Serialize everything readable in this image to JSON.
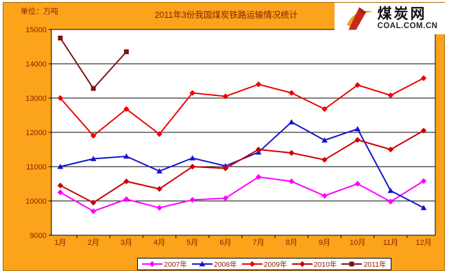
{
  "page": {
    "unit_label": "单位：万吨"
  },
  "logo": {
    "brand": "煤炭网",
    "domain": "COAL.COM.CN"
  },
  "colors": {
    "panel_bg": "#FBA31B",
    "panel_border": "#B06400",
    "label_text": "#8A1F00",
    "plot_bg": "#FFFFFF",
    "plot_border": "#000000",
    "gridline": "#000000",
    "logo_red": "#C42B1C",
    "logo_gold": "#F0A020"
  },
  "chart_data": {
    "type": "line",
    "title": "2011年3份我国煤炭铁路运输情况统计",
    "unit_label": "单位：万吨",
    "categories": [
      "1月",
      "2月",
      "3月",
      "4月",
      "5月",
      "6月",
      "7月",
      "8月",
      "9月",
      "10月",
      "11月",
      "12月"
    ],
    "series": [
      {
        "name": "2007年",
        "color": "#FF00FF",
        "marker": "diamond",
        "values": [
          10250,
          9700,
          10050,
          9800,
          10030,
          10080,
          10700,
          10570,
          10150,
          10500,
          9980,
          10580
        ]
      },
      {
        "name": "2008年",
        "color": "#1414CC",
        "marker": "triangle",
        "values": [
          11000,
          11230,
          11300,
          10870,
          11250,
          11020,
          11420,
          12300,
          11770,
          12100,
          10300,
          9800
        ]
      },
      {
        "name": "2009年",
        "color": "#EE0000",
        "marker": "diamond",
        "values": [
          13000,
          11900,
          12680,
          11950,
          13150,
          13050,
          13400,
          13150,
          12680,
          13380,
          13080,
          13580
        ]
      },
      {
        "name": "2010年",
        "color": "#CC0000",
        "marker": "diamond",
        "values": [
          10450,
          9950,
          10570,
          10350,
          11000,
          10950,
          11500,
          11400,
          11200,
          11780,
          11500,
          12050
        ]
      },
      {
        "name": "2011年",
        "color": "#7B1414",
        "marker": "square",
        "values": [
          14750,
          13280,
          14350,
          null,
          null,
          null,
          null,
          null,
          null,
          null,
          null,
          null
        ]
      }
    ],
    "ylim": [
      9000,
      15000
    ],
    "ytick_step": 1000,
    "grid": "horizontal",
    "legend_position": "bottom-center",
    "plot_background": "#FFFFFF"
  }
}
